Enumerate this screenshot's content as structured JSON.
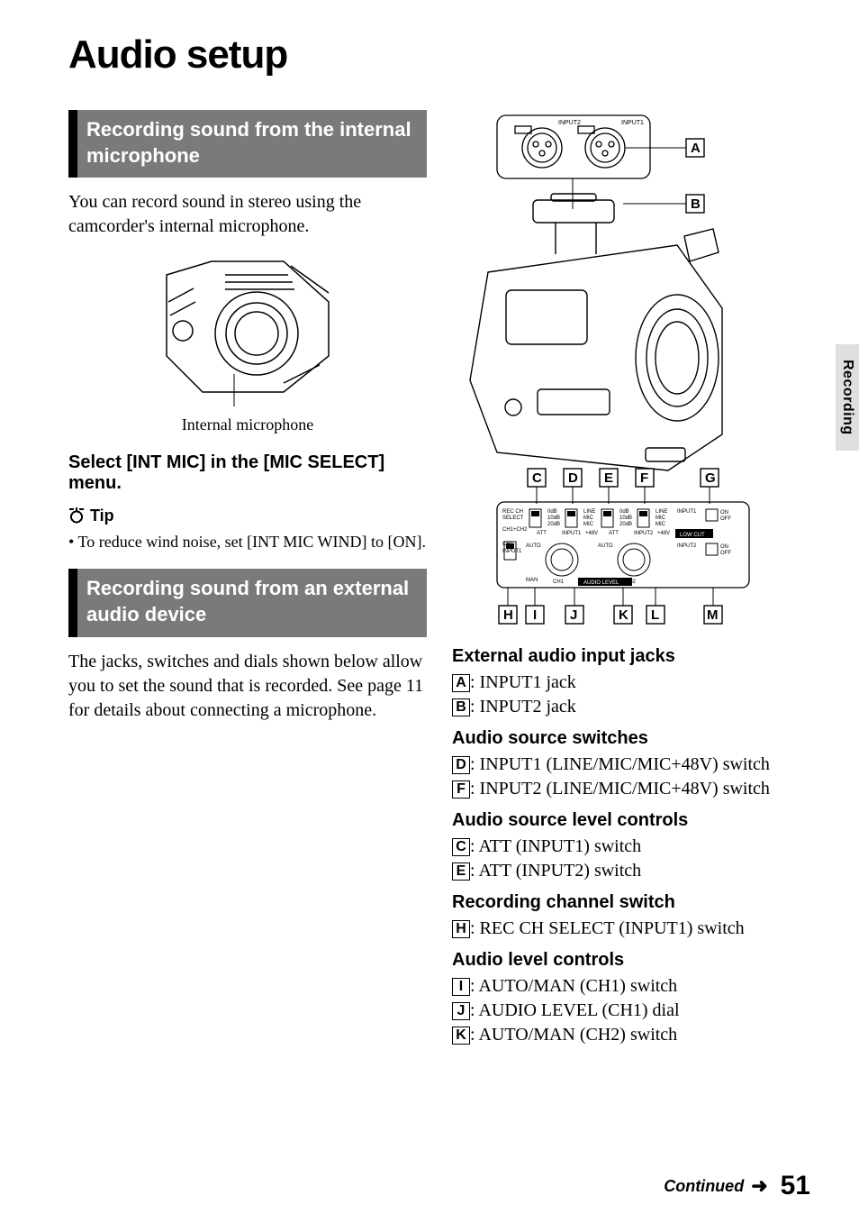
{
  "page_title": "Audio setup",
  "side_tab": "Recording",
  "left": {
    "section1_title": "Recording sound from the internal microphone",
    "section1_body": "You can record sound in stereo using the camcorder's internal microphone.",
    "fig1_caption": "Internal microphone",
    "instruction": "Select [INT MIC] in the [MIC SELECT] menu.",
    "tip_label": "Tip",
    "tip_items": [
      "To reduce wind noise, set [INT MIC WIND] to [ON]."
    ],
    "section2_title": "Recording sound from an external audio device",
    "section2_body": "The jacks, switches and dials shown below allow you to set the sound that is recorded. See page 11 for details about connecting a microphone."
  },
  "right": {
    "callout_top": [
      "A",
      "B"
    ],
    "callout_mid": [
      "C",
      "D",
      "E",
      "F",
      "G"
    ],
    "callout_bot": [
      "H",
      "I",
      "J",
      "K",
      "L",
      "M"
    ],
    "groups": [
      {
        "heading": "External audio input jacks",
        "items": [
          {
            "letter": "A",
            "text": ": INPUT1 jack"
          },
          {
            "letter": "B",
            "text": ": INPUT2 jack"
          }
        ]
      },
      {
        "heading": "Audio source switches",
        "items": [
          {
            "letter": "D",
            "text": ": INPUT1 (LINE/MIC/MIC+48V) switch"
          },
          {
            "letter": "F",
            "text": ": INPUT2 (LINE/MIC/MIC+48V) switch"
          }
        ]
      },
      {
        "heading": "Audio source level controls",
        "items": [
          {
            "letter": "C",
            "text": ": ATT (INPUT1) switch"
          },
          {
            "letter": "E",
            "text": ": ATT (INPUT2) switch"
          }
        ]
      },
      {
        "heading": "Recording channel switch",
        "items": [
          {
            "letter": "H",
            "text": ": REC CH SELECT (INPUT1) switch"
          }
        ]
      },
      {
        "heading": "Audio level controls",
        "items": [
          {
            "letter": "I",
            "text": ": AUTO/MAN (CH1) switch"
          },
          {
            "letter": "J",
            "text": ": AUDIO LEVEL (CH1) dial"
          },
          {
            "letter": "K",
            "text": ": AUTO/MAN (CH2) switch"
          }
        ]
      }
    ]
  },
  "footer": {
    "continued": "Continued",
    "page": "51"
  },
  "colors": {
    "bar_bg": "#7a7a7a",
    "bar_border": "#000000",
    "tab_bg": "#dfdfdf"
  },
  "diagram_labels": {
    "input2": "INPUT2",
    "input1": "INPUT1",
    "rec_ch_select": "REC CH\nSELECT",
    "ch1ch2": "CH1+CH2",
    "ch1": "CH1",
    "input1s": "INPUT1",
    "att": "ATT",
    "db0": "0dB",
    "db10": "10dB",
    "db20": "20dB",
    "line": "LINE",
    "mic": "MIC",
    "v48": "+48V",
    "auto": "AUTO",
    "man": "MAN",
    "low_cut": "LOW CUT",
    "on": "ON",
    "off": "OFF",
    "ch1l": "CH1",
    "ch2l": "CH2",
    "audio_level": "AUDIO LEVEL"
  }
}
